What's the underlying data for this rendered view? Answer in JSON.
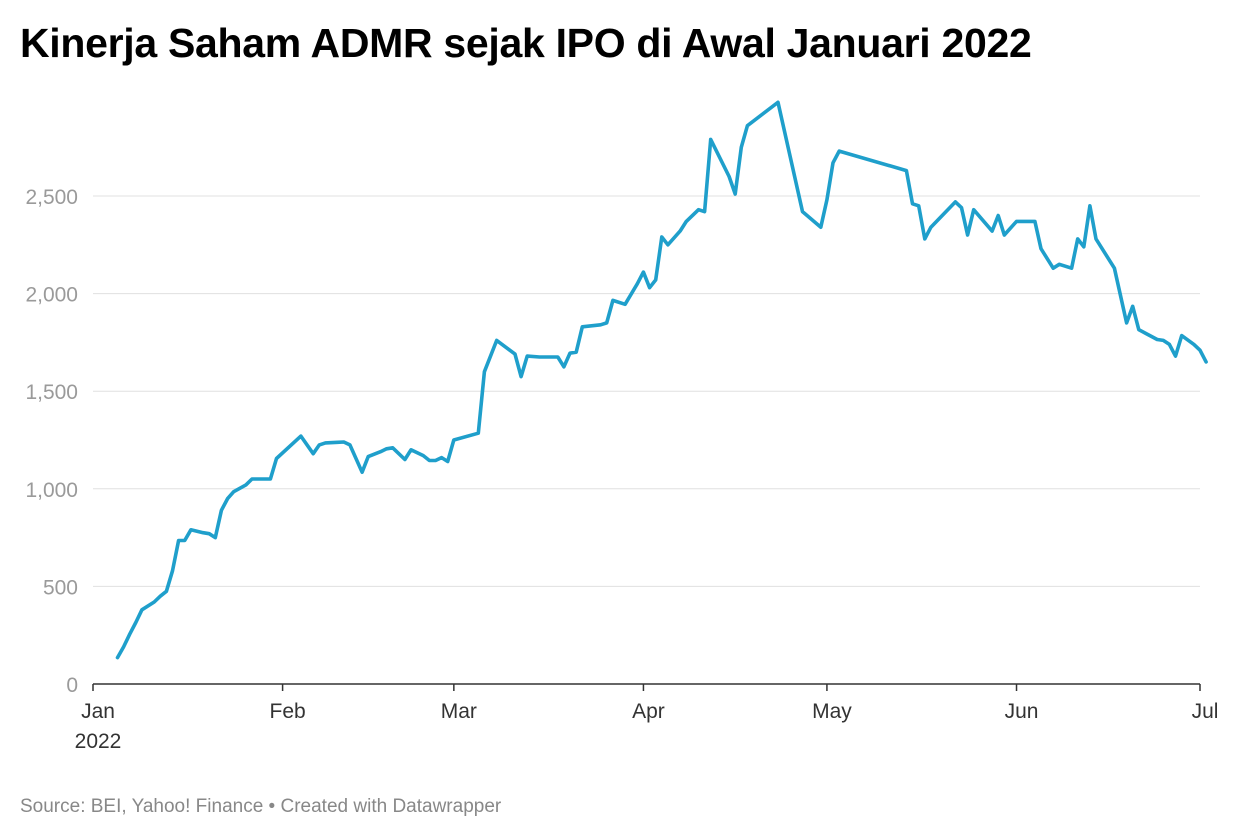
{
  "title": "Kinerja Saham ADMR sejak IPO di Awal Januari 2022",
  "footer": {
    "source": "Source: BEI, Yahoo! Finance",
    "separator": " • ",
    "credit": "Created with Datawrapper"
  },
  "colors": {
    "line": "#1f9fcb",
    "grid": "#e0e0e0",
    "axis": "#333333",
    "y_tick_text": "#9a9a9a",
    "x_tick_text": "#333333"
  },
  "chart_data": {
    "type": "line",
    "title": "Kinerja Saham ADMR sejak IPO di Awal Januari 2022",
    "xlabel": "",
    "ylabel": "",
    "ylim": [
      0,
      3000
    ],
    "y_ticks": [
      0,
      500,
      1000,
      1500,
      2000,
      2500
    ],
    "y_tick_labels": [
      "0",
      "500",
      "1,000",
      "1,500",
      "2,000",
      "2,500"
    ],
    "x_range": [
      "2022-01-01",
      "2022-07-01"
    ],
    "x_ticks": [
      {
        "date": "2022-01-01",
        "label": "Jan",
        "sublabel": "2022"
      },
      {
        "date": "2022-02-01",
        "label": "Feb"
      },
      {
        "date": "2022-03-01",
        "label": "Mar"
      },
      {
        "date": "2022-04-01",
        "label": "Apr"
      },
      {
        "date": "2022-05-01",
        "label": "May"
      },
      {
        "date": "2022-06-01",
        "label": "Jun"
      },
      {
        "date": "2022-07-01",
        "label": "Jul"
      }
    ],
    "grid": true,
    "series": [
      {
        "points": [
          [
            "2022-01-05",
            135
          ],
          [
            "2022-01-06",
            190
          ],
          [
            "2022-01-07",
            255
          ],
          [
            "2022-01-08",
            315
          ],
          [
            "2022-01-09",
            380
          ],
          [
            "2022-01-11",
            420
          ],
          [
            "2022-01-12",
            450
          ],
          [
            "2022-01-13",
            475
          ],
          [
            "2022-01-14",
            580
          ],
          [
            "2022-01-15",
            735
          ],
          [
            "2022-01-16",
            735
          ],
          [
            "2022-01-17",
            790
          ],
          [
            "2022-01-19",
            775
          ],
          [
            "2022-01-20",
            770
          ],
          [
            "2022-01-21",
            750
          ],
          [
            "2022-01-22",
            890
          ],
          [
            "2022-01-23",
            950
          ],
          [
            "2022-01-24",
            985
          ],
          [
            "2022-01-26",
            1020
          ],
          [
            "2022-01-27",
            1050
          ],
          [
            "2022-01-30",
            1050
          ],
          [
            "2022-01-31",
            1155
          ],
          [
            "2022-02-04",
            1270
          ],
          [
            "2022-02-06",
            1180
          ],
          [
            "2022-02-07",
            1225
          ],
          [
            "2022-02-08",
            1235
          ],
          [
            "2022-02-10",
            1238
          ],
          [
            "2022-02-11",
            1240
          ],
          [
            "2022-02-12",
            1225
          ],
          [
            "2022-02-14",
            1085
          ],
          [
            "2022-02-15",
            1165
          ],
          [
            "2022-02-17",
            1190
          ],
          [
            "2022-02-18",
            1205
          ],
          [
            "2022-02-19",
            1210
          ],
          [
            "2022-02-21",
            1150
          ],
          [
            "2022-02-22",
            1200
          ],
          [
            "2022-02-24",
            1170
          ],
          [
            "2022-02-25",
            1145
          ],
          [
            "2022-02-26",
            1145
          ],
          [
            "2022-02-27",
            1160
          ],
          [
            "2022-02-28",
            1140
          ],
          [
            "2022-03-01",
            1250
          ],
          [
            "2022-03-05",
            1285
          ],
          [
            "2022-03-06",
            1600
          ],
          [
            "2022-03-08",
            1760
          ],
          [
            "2022-03-11",
            1690
          ],
          [
            "2022-03-12",
            1575
          ],
          [
            "2022-03-13",
            1680
          ],
          [
            "2022-03-15",
            1675
          ],
          [
            "2022-03-18",
            1675
          ],
          [
            "2022-03-19",
            1625
          ],
          [
            "2022-03-20",
            1695
          ],
          [
            "2022-03-21",
            1700
          ],
          [
            "2022-03-22",
            1830
          ],
          [
            "2022-03-25",
            1840
          ],
          [
            "2022-03-26",
            1850
          ],
          [
            "2022-03-27",
            1965
          ],
          [
            "2022-03-29",
            1945
          ],
          [
            "2022-03-31",
            2050
          ],
          [
            "2022-04-01",
            2110
          ],
          [
            "2022-04-02",
            2030
          ],
          [
            "2022-04-03",
            2070
          ],
          [
            "2022-04-04",
            2290
          ],
          [
            "2022-04-05",
            2250
          ],
          [
            "2022-04-07",
            2320
          ],
          [
            "2022-04-08",
            2370
          ],
          [
            "2022-04-10",
            2430
          ],
          [
            "2022-04-11",
            2420
          ],
          [
            "2022-04-12",
            2790
          ],
          [
            "2022-04-15",
            2600
          ],
          [
            "2022-04-16",
            2510
          ],
          [
            "2022-04-17",
            2750
          ],
          [
            "2022-04-18",
            2860
          ],
          [
            "2022-04-23",
            2980
          ],
          [
            "2022-04-27",
            2420
          ],
          [
            "2022-04-30",
            2340
          ],
          [
            "2022-05-01",
            2480
          ],
          [
            "2022-05-02",
            2670
          ],
          [
            "2022-05-03",
            2730
          ],
          [
            "2022-05-14",
            2630
          ],
          [
            "2022-05-15",
            2460
          ],
          [
            "2022-05-16",
            2450
          ],
          [
            "2022-05-17",
            2280
          ],
          [
            "2022-05-18",
            2340
          ],
          [
            "2022-05-22",
            2470
          ],
          [
            "2022-05-23",
            2440
          ],
          [
            "2022-05-24",
            2300
          ],
          [
            "2022-05-25",
            2430
          ],
          [
            "2022-05-28",
            2320
          ],
          [
            "2022-05-29",
            2400
          ],
          [
            "2022-05-30",
            2300
          ],
          [
            "2022-06-01",
            2370
          ],
          [
            "2022-06-04",
            2370
          ],
          [
            "2022-06-05",
            2230
          ],
          [
            "2022-06-07",
            2130
          ],
          [
            "2022-06-08",
            2150
          ],
          [
            "2022-06-10",
            2130
          ],
          [
            "2022-06-11",
            2280
          ],
          [
            "2022-06-12",
            2240
          ],
          [
            "2022-06-13",
            2450
          ],
          [
            "2022-06-14",
            2280
          ],
          [
            "2022-06-17",
            2130
          ],
          [
            "2022-06-19",
            1850
          ],
          [
            "2022-06-20",
            1935
          ],
          [
            "2022-06-21",
            1815
          ],
          [
            "2022-06-24",
            1765
          ],
          [
            "2022-06-25",
            1760
          ],
          [
            "2022-06-26",
            1740
          ],
          [
            "2022-06-27",
            1680
          ],
          [
            "2022-06-28",
            1785
          ],
          [
            "2022-06-30",
            1740
          ],
          [
            "2022-07-01",
            1710
          ],
          [
            "2022-07-02",
            1650
          ]
        ]
      }
    ]
  }
}
